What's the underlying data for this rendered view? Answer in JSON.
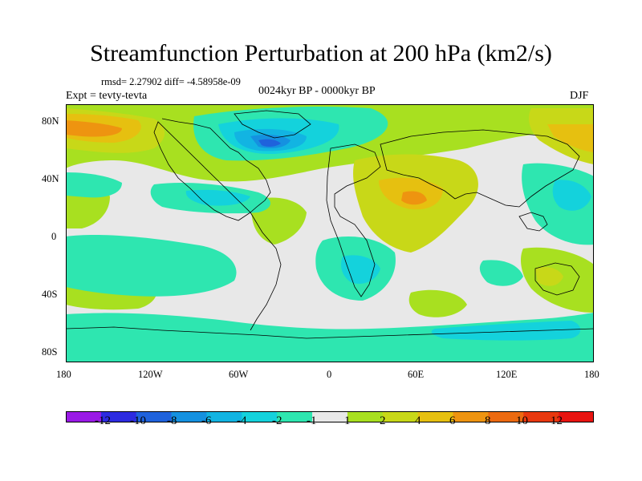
{
  "title": "Streamfunction Perturbation at 200 hPa (km2/s)",
  "stats_line": "rmsd= 2.27902 diff= -4.58958e-09",
  "experiment": "Expt = tevty-tevta",
  "period": "0024kyr BP - 0000kyr BP",
  "season": "DJF",
  "map": {
    "lat_labels": [
      "80N",
      "40N",
      "0",
      "40S",
      "80S"
    ],
    "lon_labels": [
      "180",
      "120W",
      "60W",
      "0",
      "60E",
      "120E",
      "180"
    ]
  },
  "colorbar": {
    "labels": [
      "-12",
      "-10",
      "-8",
      "-6",
      "-4",
      "-2",
      "-1",
      "1",
      "2",
      "4",
      "6",
      "8",
      "10",
      "12"
    ],
    "colors": [
      "#9a1ae6",
      "#2d2be0",
      "#1f62dc",
      "#1591e0",
      "#12b4e2",
      "#14d2dc",
      "#2ee6b0",
      "#e8e8e8",
      "#a8e020",
      "#c8d818",
      "#e6c010",
      "#ee9410",
      "#ec6a10",
      "#e8380e",
      "#e81410"
    ]
  }
}
